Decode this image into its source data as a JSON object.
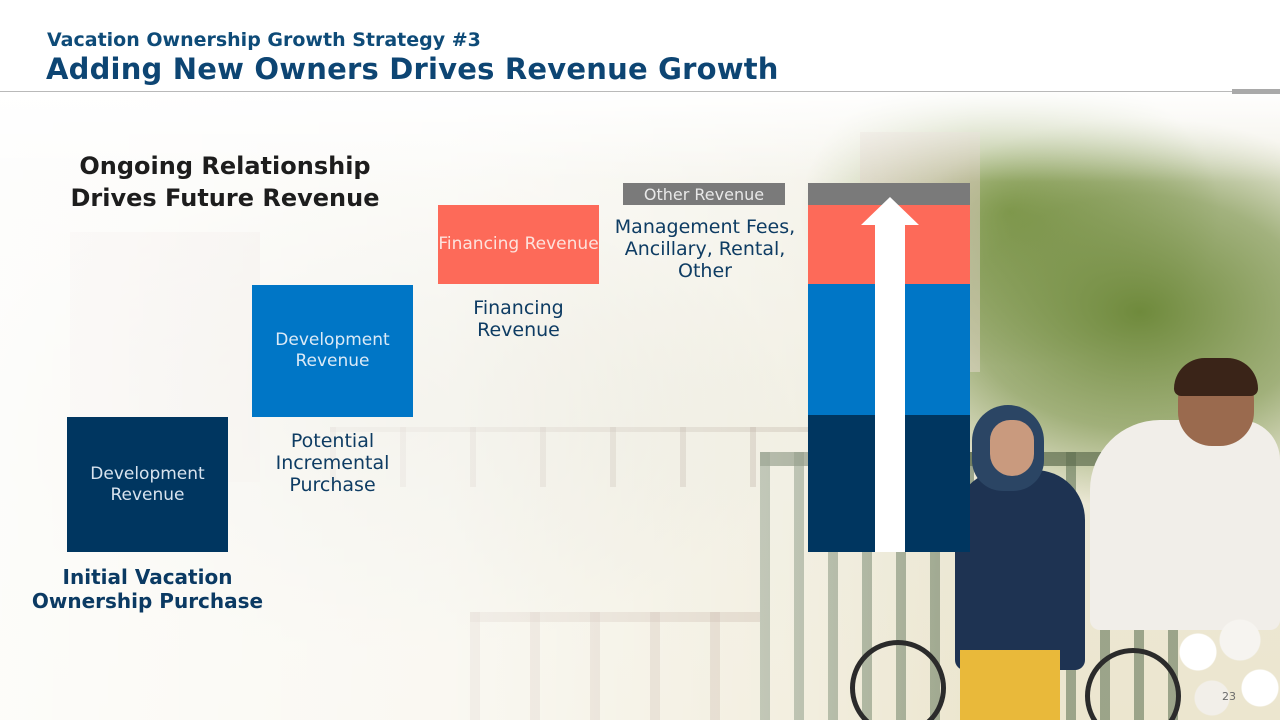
{
  "header": {
    "supertitle": "Vacation Ownership Growth Strategy #3",
    "title": "Adding New Owners Drives Revenue Growth"
  },
  "diagram": {
    "heading": "Ongoing Relationship Drives Future Revenue",
    "steps": [
      {
        "box_label": "Development Revenue",
        "caption": "Initial Vacation Ownership Purchase",
        "color": "#003660"
      },
      {
        "box_label": "Development Revenue",
        "caption": "Potential Incremental Purchase",
        "color": "#0076c6"
      },
      {
        "box_label": "Financing Revenue",
        "caption": "Financing Revenue",
        "color": "#fd6a59"
      },
      {
        "box_label": "Other Revenue",
        "caption": "Management Fees, Ancillary, Rental, Other",
        "color": "#7a7a7a"
      }
    ],
    "stacked_bar": {
      "segments_bottom_to_top": [
        "Development Revenue (Initial)",
        "Development Revenue (Incremental)",
        "Financing Revenue",
        "Other Revenue"
      ],
      "arrow": "up-arrow-icon"
    }
  },
  "colors": {
    "title_blue": "#0d4573",
    "navy": "#003660",
    "blue": "#0076c6",
    "coral": "#fd6a59",
    "gray": "#7a7a7a"
  },
  "footer": {
    "page_number": "23"
  }
}
